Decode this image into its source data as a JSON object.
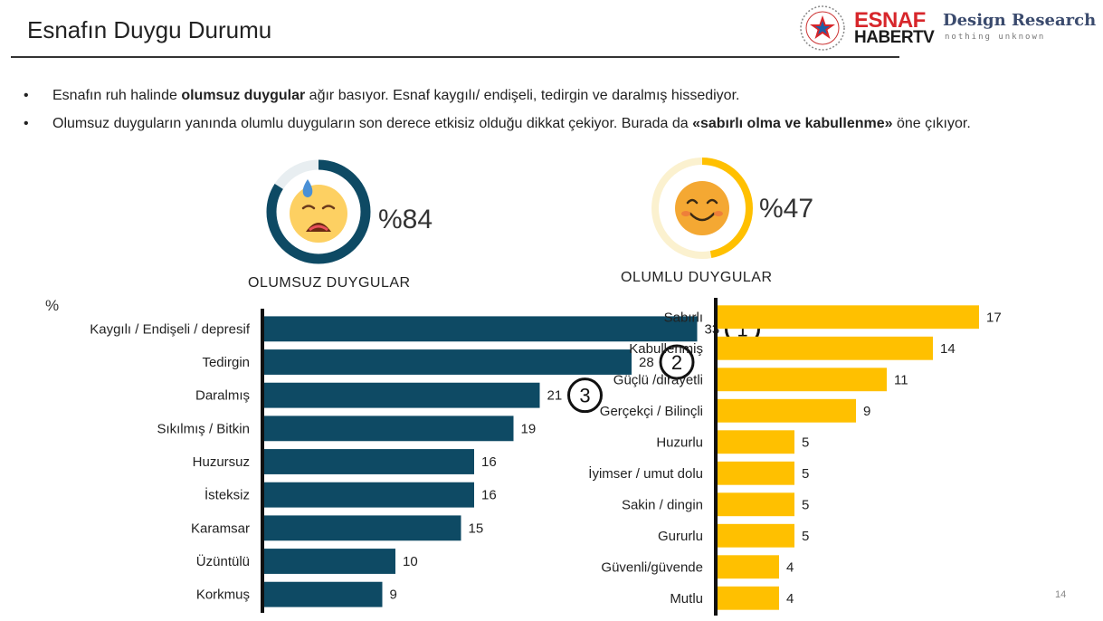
{
  "header": {
    "title": "Esnafın Duygu Durumu",
    "logo": {
      "brand_top": "ESNAF",
      "brand_bottom": "HABERTV",
      "company": "Design Research",
      "tagline": "nothing unknown"
    }
  },
  "bullets": [
    {
      "pre": "Esnafın ruh halinde ",
      "bold": "olumsuz duygular",
      "post": " ağır basıyor. Esnaf kaygılı/ endişeli, tedirgin ve daralmış hissediyor."
    },
    {
      "pre": "Olumsuz duyguların yanında olumlu duyguların son derece etkisiz olduğu dikkat çekiyor. Burada da ",
      "bold": "«sabırlı olma ve kabullenme»",
      "post": " öne çıkıyor."
    }
  ],
  "bullet_symbol": "•",
  "negative": {
    "label": "OLUMSUZ DUYGULAR",
    "percent_text": "%84",
    "percent": 84,
    "color": "#0e4a64",
    "emoji_icon": "anxious-sweat-face-icon"
  },
  "positive": {
    "label": "OLUMLU DUYGULAR",
    "percent_text": "%47",
    "percent": 47,
    "color": "#ffc000",
    "emoji_icon": "smiling-face-icon"
  },
  "percent_unit": "%",
  "page_number": "14",
  "chart_data": [
    {
      "type": "bar",
      "orientation": "horizontal",
      "categories": [
        "Kaygılı / Endişeli / depresif",
        "Tedirgin",
        "Daralmış",
        "Sıkılmış / Bitkin",
        "Huzursuz",
        "İsteksiz",
        "Karamsar",
        "Üzüntülü",
        "Korkmuş"
      ],
      "values": [
        33,
        28,
        21,
        19,
        16,
        16,
        15,
        10,
        9
      ],
      "rank_markers": [
        "1",
        "2",
        "3"
      ],
      "color": "#0e4a64",
      "xlim": [
        0,
        40
      ]
    },
    {
      "type": "bar",
      "orientation": "horizontal",
      "categories": [
        "Sabırlı",
        "Kabullenmiş",
        "Güçlü /dirayetli",
        "Gerçekçi / Bilinçli",
        "Huzurlu",
        "İyimser / umut dolu",
        "Sakin / dingin",
        "Gururlu",
        "Güvenli/güvende",
        "Mutlu"
      ],
      "values": [
        17,
        14,
        11,
        9,
        5,
        5,
        5,
        5,
        4,
        4
      ],
      "color": "#ffc000",
      "xlim": [
        0,
        40
      ]
    }
  ]
}
